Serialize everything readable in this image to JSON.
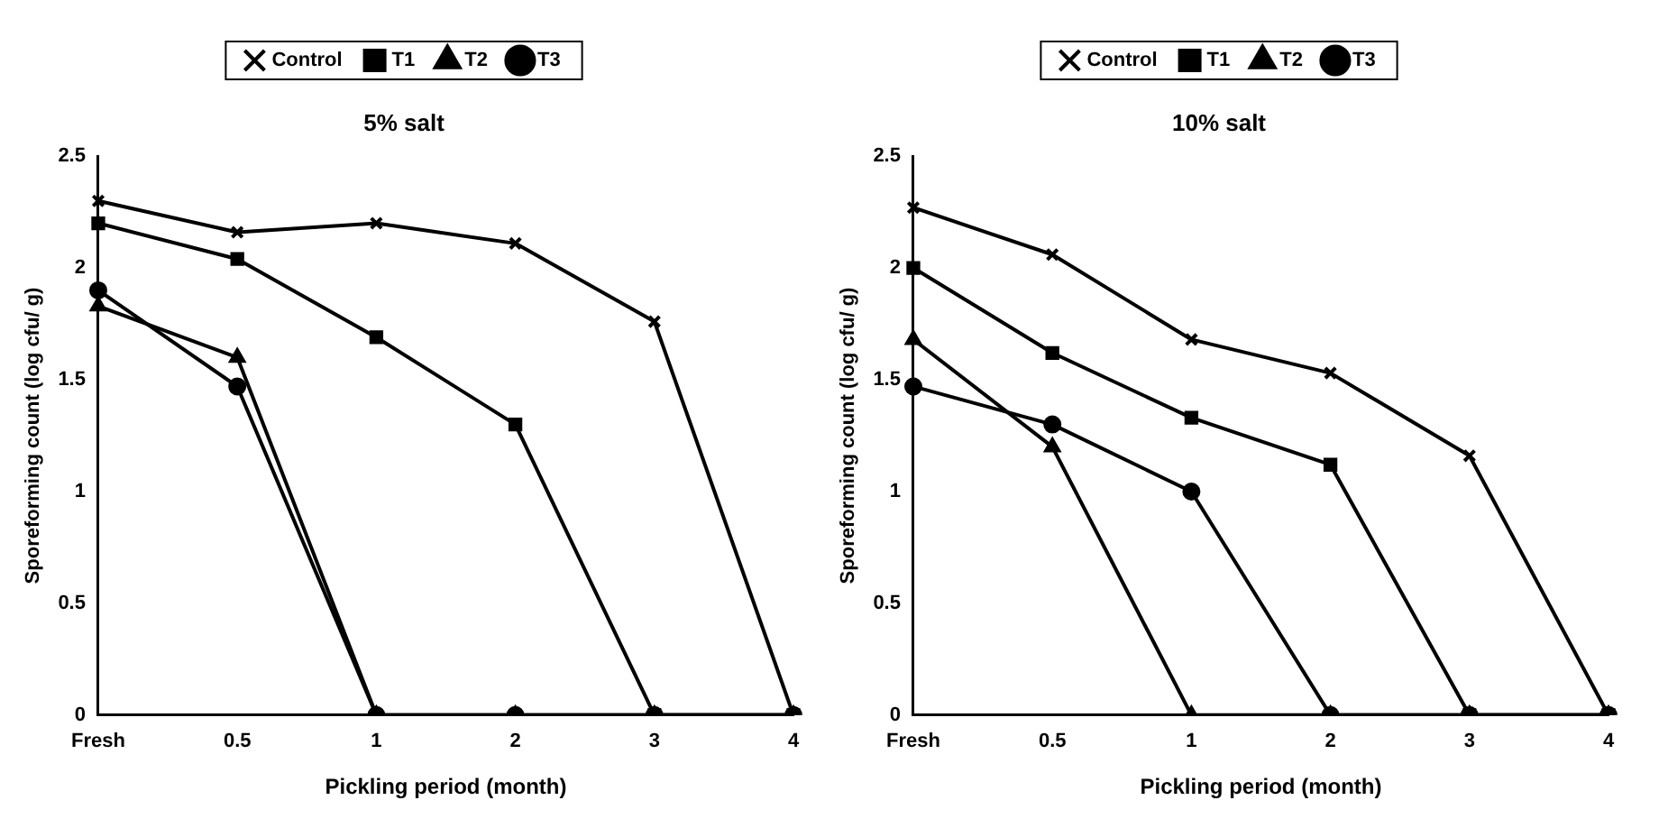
{
  "chart_data": [
    {
      "type": "line",
      "title": "5% salt",
      "xlabel": "Pickling period (month)",
      "ylabel": "Sporeforming count (log cfu/ g)",
      "categories": [
        "Fresh",
        "0.5",
        "1",
        "2",
        "3",
        "4"
      ],
      "series": [
        {
          "name": "Control",
          "color": "#000000",
          "marker": "cross",
          "values": [
            2.3,
            2.16,
            2.2,
            2.11,
            1.76,
            0
          ]
        },
        {
          "name": "T1",
          "color": "#000000",
          "marker": "square",
          "values": [
            2.2,
            2.04,
            1.69,
            1.3,
            0,
            0
          ]
        },
        {
          "name": "T2",
          "color": "#000000",
          "marker": "triangle",
          "values": [
            1.83,
            1.6,
            0,
            0,
            0,
            0
          ]
        },
        {
          "name": "T3",
          "color": "#000000",
          "marker": "circle",
          "values": [
            1.9,
            1.47,
            0,
            0,
            0,
            0
          ]
        }
      ],
      "ylim": [
        0,
        2.5
      ],
      "yticks": [
        0,
        0.5,
        1,
        1.5,
        2,
        2.5
      ],
      "grid": false,
      "legend": "top",
      "line_style": "solid"
    },
    {
      "type": "line",
      "title": "10% salt",
      "xlabel": "Pickling period (month)",
      "ylabel": "Sporeforming count (log cfu/ g)",
      "categories": [
        "Fresh",
        "0.5",
        "1",
        "2",
        "3",
        "4"
      ],
      "series": [
        {
          "name": "Control",
          "color": "#000000",
          "marker": "cross",
          "values": [
            2.27,
            2.06,
            1.68,
            1.53,
            1.16,
            0
          ]
        },
        {
          "name": "T1",
          "color": "#000000",
          "marker": "square",
          "values": [
            2.0,
            1.62,
            1.33,
            1.12,
            0,
            0
          ]
        },
        {
          "name": "T2",
          "color": "#000000",
          "marker": "triangle",
          "values": [
            1.68,
            1.2,
            0,
            0,
            0,
            0
          ]
        },
        {
          "name": "T3",
          "color": "#000000",
          "marker": "circle",
          "values": [
            1.47,
            1.3,
            1.0,
            0,
            0,
            0
          ]
        }
      ],
      "ylim": [
        0,
        2.5
      ],
      "yticks": [
        0,
        0.5,
        1,
        1.5,
        2,
        2.5
      ],
      "grid": false,
      "legend": "top",
      "line_style": "solid"
    }
  ]
}
